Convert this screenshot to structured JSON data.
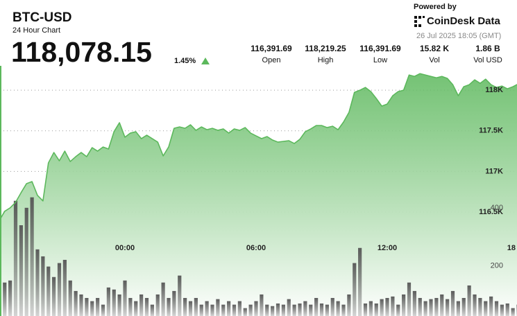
{
  "chart_data": {
    "type": "line",
    "title": "BTC-USD",
    "subtitle": "24 Hour Chart",
    "last_price": "118,078.15",
    "change": "1.45%",
    "stats": [
      {
        "value": "116,391.69",
        "label": "Open"
      },
      {
        "value": "118,219.25",
        "label": "High"
      },
      {
        "value": "116,391.69",
        "label": "Low"
      },
      {
        "value": "15.82 K",
        "label": "Vol"
      },
      {
        "value": "1.86 B",
        "label": "Vol USD"
      }
    ],
    "source": "Powered by",
    "brand": "CoinDesk Data",
    "timestamp": "26 Jul 2025 18:05 (GMT)",
    "categories": [
      null,
      null,
      null,
      null,
      null,
      null,
      null,
      null,
      null,
      null,
      null,
      null,
      null,
      null,
      null,
      null,
      null,
      null,
      null,
      null,
      null,
      null,
      null,
      "00:00",
      null,
      null,
      null,
      null,
      null,
      null,
      null,
      null,
      null,
      null,
      null,
      null,
      null,
      null,
      null,
      null,
      null,
      null,
      null,
      null,
      null,
      null,
      null,
      "06:00",
      null,
      null,
      null,
      null,
      null,
      null,
      null,
      null,
      null,
      null,
      null,
      null,
      null,
      null,
      null,
      null,
      null,
      null,
      null,
      null,
      null,
      null,
      null,
      "12:00",
      null,
      null,
      null,
      null,
      null,
      null,
      null,
      null,
      null,
      null,
      null,
      null,
      null,
      null,
      null,
      null,
      null,
      null,
      null,
      null,
      null,
      null,
      null,
      "18"
    ],
    "series": [
      {
        "color": "#5cb85c",
        "values": [
          116392,
          116509,
          116552,
          116620,
          116739,
          116850,
          116875,
          116705,
          116637,
          117105,
          117233,
          117131,
          117250,
          117122,
          117182,
          117233,
          117182,
          117293,
          117250,
          117301,
          117276,
          117489,
          117600,
          117421,
          117472,
          117489,
          117404,
          117446,
          117404,
          117361,
          117191,
          117301,
          117531,
          117548,
          117531,
          117574,
          117506,
          117548,
          117514,
          117531,
          117506,
          117523,
          117472,
          117523,
          117506,
          117540,
          117472,
          117438,
          117404,
          117429,
          117387,
          117361,
          117370,
          117378,
          117344,
          117395,
          117489,
          117523,
          117565,
          117565,
          117540,
          117557,
          117514,
          117608,
          117727,
          117974,
          118000,
          118034,
          117983,
          117898,
          117804,
          117830,
          117932,
          117983,
          118000,
          118187,
          118170,
          118204,
          118187,
          118170,
          118153,
          118170,
          118145,
          118068,
          117932,
          118043,
          118068,
          118128,
          118085,
          118136,
          118068,
          118034,
          118051,
          118017,
          118043,
          118078
        ]
      },
      {
        "type": "bar",
        "axis": "y2",
        "color": "#555555",
        "values": [
          174,
          143,
          150,
          424,
          340,
          400,
          436,
          257,
          233,
          198,
          162,
          210,
          221,
          150,
          114,
          102,
          90,
          79,
          90,
          67,
          126,
          119,
          102,
          150,
          90,
          79,
          102,
          90,
          67,
          102,
          143,
          90,
          114,
          167,
          90,
          79,
          90,
          67,
          79,
          67,
          86,
          67,
          79,
          67,
          79,
          55,
          67,
          79,
          102,
          67,
          62,
          71,
          67,
          86,
          67,
          71,
          79,
          67,
          90,
          71,
          67,
          90,
          79,
          67,
          102,
          210,
          262,
          71,
          79,
          71,
          86,
          90,
          95,
          67,
          102,
          143,
          114,
          90,
          79,
          86,
          90,
          102,
          86,
          114,
          79,
          90,
          133,
          102,
          90,
          79,
          95,
          79,
          67,
          71,
          55,
          67
        ]
      }
    ],
    "ylim": [
      115220,
      118300
    ],
    "yticks": [
      {
        "value": 116500,
        "label": "116.5K"
      },
      {
        "value": 117000,
        "label": "117K"
      },
      {
        "value": 117500,
        "label": "117.5K"
      },
      {
        "value": 118000,
        "label": "118K"
      }
    ],
    "y2lim": [
      28,
      888
    ],
    "y2ticks": [
      200,
      400
    ],
    "grid": true
  }
}
